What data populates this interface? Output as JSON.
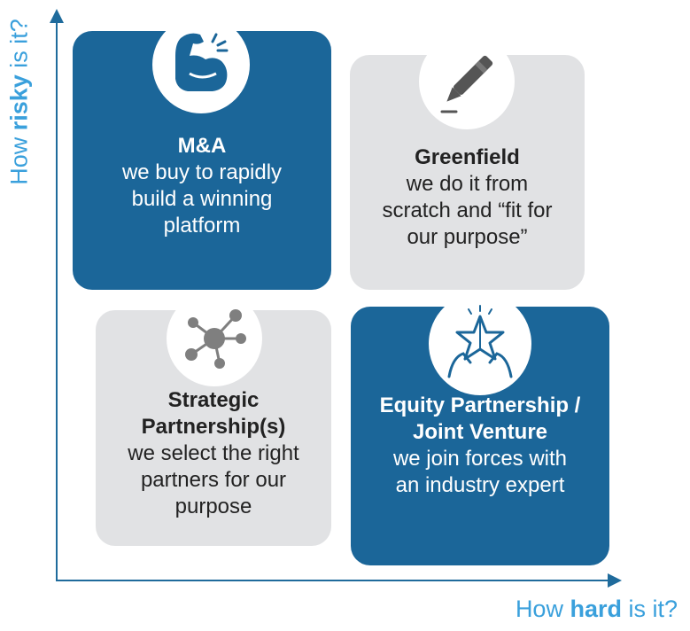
{
  "axes": {
    "y_prefix": "How ",
    "y_emphasis": "risky",
    "y_suffix": " is it?",
    "x_prefix": "How ",
    "x_emphasis": "hard",
    "x_suffix": " is it?",
    "color": "#1f6b9c",
    "label_color": "#3aa0dc"
  },
  "quadrants": [
    {
      "id": "ma",
      "icon": "flexed-bicep-icon",
      "title": "M&A",
      "description": "we buy to rapidly build a winning platform",
      "color": "#1b6699"
    },
    {
      "id": "greenfield",
      "icon": "pen-icon",
      "title": "Greenfield",
      "description": "we do it from scratch and “fit for our purpose”",
      "color": "#e1e2e4"
    },
    {
      "id": "strategic",
      "icon": "network-hub-icon",
      "title": "Strategic Partnership(s)",
      "description": "we select the right partners for our purpose",
      "color": "#e1e2e4"
    },
    {
      "id": "equity",
      "icon": "hands-star-icon",
      "title": "Equity Partnership / Joint Venture",
      "description": "we join forces with an industry expert",
      "color": "#1b6699"
    }
  ]
}
